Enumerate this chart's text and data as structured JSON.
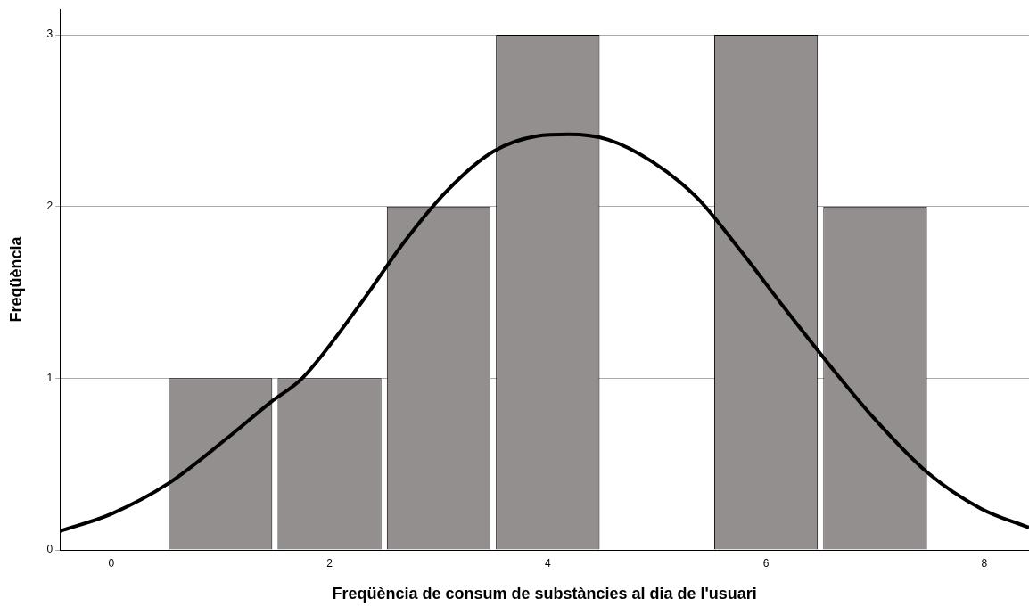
{
  "chart_data": {
    "type": "histogram",
    "xlabel": "Freqüència de consum de substàncies al dia de l'usuari",
    "ylabel": "Freqüència",
    "xlim": [
      -0.47,
      8.41
    ],
    "xticks": [
      0,
      2,
      4,
      6,
      8
    ],
    "ylim": [
      0,
      3.15
    ],
    "yticks": [
      0,
      1,
      2,
      3
    ],
    "grid": "y",
    "legend": false,
    "marker": "none",
    "series": [
      {
        "color": "#938f8e",
        "bins": [
          0.5,
          1.5,
          2.5,
          3.5,
          4.5,
          5.5,
          6.5,
          7.5
        ],
        "values": [
          1,
          1,
          2,
          3,
          0,
          3,
          2
        ]
      },
      {
        "type": "line",
        "color": "#000000",
        "x": [
          -0.47,
          0,
          0.53,
          1.06,
          1.46,
          1.75,
          2.28,
          2.68,
          3.09,
          3.5,
          3.9,
          4.19,
          4.55,
          4.96,
          5.37,
          5.77,
          6.18,
          6.59,
          7.0,
          7.48,
          7.97,
          8.41
        ],
        "values": [
          0.11,
          0.21,
          0.39,
          0.65,
          0.86,
          1.0,
          1.43,
          1.79,
          2.1,
          2.32,
          2.41,
          2.42,
          2.39,
          2.26,
          2.05,
          1.74,
          1.4,
          1.07,
          0.76,
          0.45,
          0.24,
          0.13
        ]
      }
    ]
  }
}
